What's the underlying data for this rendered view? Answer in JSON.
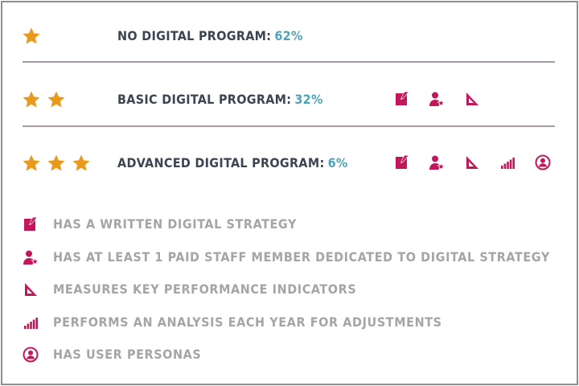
{
  "colors": {
    "star": "#e89a1c",
    "icon": "#c2185b",
    "label": "#3d4452",
    "percent": "#4fa3b8",
    "legend_text": "#a5a5a5",
    "divider": "#a79aa6"
  },
  "levels": [
    {
      "stars": 1,
      "label": "NO DIGITAL PROGRAM:",
      "percent": "62%",
      "icons": []
    },
    {
      "stars": 2,
      "label": "BASIC DIGITAL PROGRAM:",
      "percent": "32%",
      "icons": [
        "written-strategy-icon",
        "paid-staff-icon",
        "kpi-icon"
      ]
    },
    {
      "stars": 3,
      "label": "ADVANCED DIGITAL PROGRAM:",
      "percent": "6%",
      "icons": [
        "written-strategy-icon",
        "paid-staff-icon",
        "kpi-icon",
        "annual-analysis-icon",
        "user-personas-icon"
      ]
    }
  ],
  "legend": [
    {
      "icon": "written-strategy-icon",
      "text": "HAS A WRITTEN DIGITAL STRATEGY"
    },
    {
      "icon": "paid-staff-icon",
      "text": "HAS AT LEAST 1 PAID STAFF MEMBER DEDICATED TO DIGITAL STRATEGY"
    },
    {
      "icon": "kpi-icon",
      "text": "MEASURES KEY PERFORMANCE INDICATORS"
    },
    {
      "icon": "annual-analysis-icon",
      "text": "PERFORMS AN ANALYSIS EACH YEAR FOR ADJUSTMENTS"
    },
    {
      "icon": "user-personas-icon",
      "text": "HAS USER PERSONAS"
    }
  ]
}
